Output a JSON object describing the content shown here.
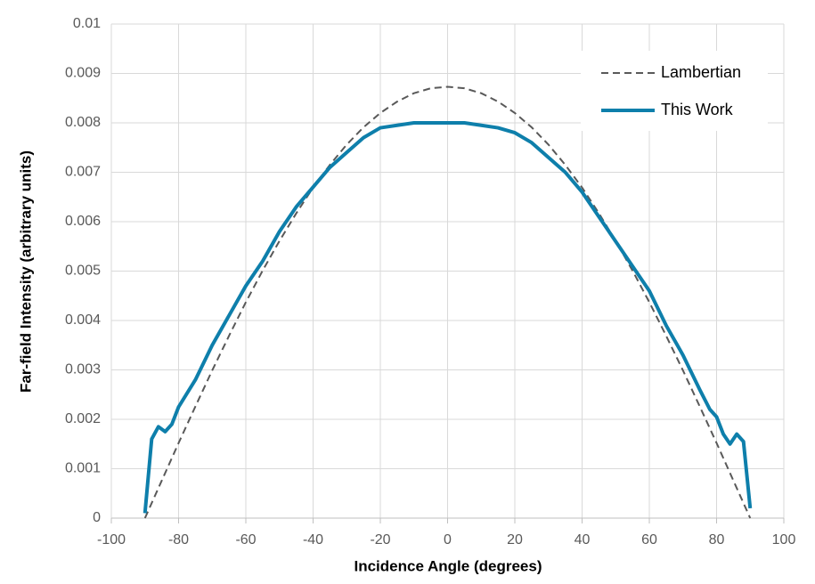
{
  "chart_data": {
    "type": "line",
    "xlabel": "Incidence Angle (degrees)",
    "ylabel": "Far-field Intensity (arbitrary units)",
    "xlim": [
      -100,
      100
    ],
    "xticks": [
      -100,
      -80,
      -60,
      -40,
      -20,
      0,
      20,
      40,
      60,
      80,
      100
    ],
    "ylim": [
      0,
      0.01
    ],
    "yticks": [
      0,
      0.001,
      0.002,
      0.003,
      0.004,
      0.005,
      0.006,
      0.007,
      0.008,
      0.009,
      0.01
    ],
    "grid": true,
    "legend": "upper right",
    "series": [
      {
        "name": "Lambertian",
        "color": "#595959",
        "dash": true,
        "x": [
          -90,
          -85,
          -80,
          -75,
          -70,
          -65,
          -60,
          -55,
          -50,
          -45,
          -40,
          -35,
          -30,
          -25,
          -20,
          -15,
          -10,
          -5,
          0,
          5,
          10,
          15,
          20,
          25,
          30,
          35,
          40,
          45,
          50,
          55,
          60,
          65,
          70,
          75,
          80,
          85,
          90
        ],
        "values": [
          0,
          0.00076,
          0.00152,
          0.00226,
          0.00299,
          0.00369,
          0.00437,
          0.00501,
          0.00561,
          0.00617,
          0.00669,
          0.00715,
          0.00756,
          0.00791,
          0.0082,
          0.00843,
          0.0086,
          0.0087,
          0.00873,
          0.0087,
          0.0086,
          0.00843,
          0.0082,
          0.00791,
          0.00756,
          0.00715,
          0.00669,
          0.00617,
          0.00561,
          0.00501,
          0.00437,
          0.00369,
          0.00299,
          0.00226,
          0.00152,
          0.00076,
          0
        ]
      },
      {
        "name": "This Work",
        "color": "#0e7fab",
        "dash": false,
        "x": [
          -90,
          -88,
          -86,
          -84,
          -82,
          -80,
          -75,
          -70,
          -65,
          -60,
          -55,
          -50,
          -45,
          -40,
          -35,
          -30,
          -25,
          -20,
          -15,
          -10,
          -5,
          0,
          5,
          10,
          15,
          20,
          25,
          30,
          35,
          40,
          45,
          50,
          55,
          60,
          65,
          70,
          75,
          78,
          80,
          82,
          84,
          86,
          88,
          90
        ],
        "values": [
          0.0001,
          0.0016,
          0.00185,
          0.00175,
          0.0019,
          0.00225,
          0.0028,
          0.0035,
          0.0041,
          0.0047,
          0.0052,
          0.0058,
          0.0063,
          0.0067,
          0.0071,
          0.0074,
          0.0077,
          0.0079,
          0.00795,
          0.008,
          0.008,
          0.008,
          0.008,
          0.00795,
          0.0079,
          0.0078,
          0.0076,
          0.0073,
          0.007,
          0.0066,
          0.0061,
          0.0056,
          0.0051,
          0.0046,
          0.0039,
          0.0033,
          0.0026,
          0.0022,
          0.00205,
          0.0017,
          0.0015,
          0.0017,
          0.00155,
          0.0002
        ]
      }
    ]
  }
}
